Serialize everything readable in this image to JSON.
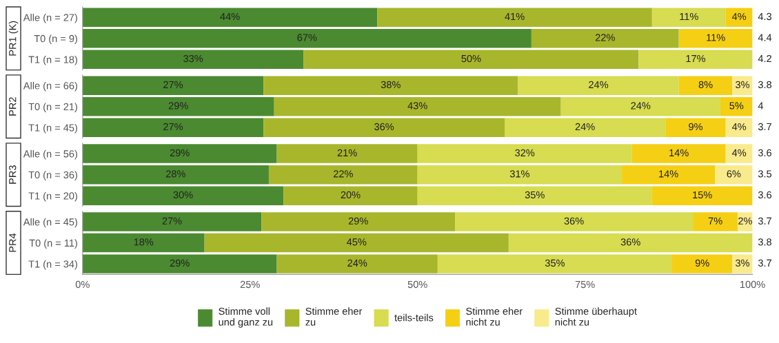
{
  "chart_data": [
    {
      "type": "bar",
      "title": "PR1 (K)",
      "orientation": "horizontal",
      "stacked": true,
      "categories": [
        "Alle (n = 27)",
        "T0 (n = 9)",
        "T1 (n = 18)"
      ],
      "series": [
        {
          "color": "#4b8a30",
          "values": [
            44,
            67,
            33
          ],
          "value_labels": [
            "44%",
            "67%",
            "33%"
          ]
        },
        {
          "color": "#a8b62c",
          "values": [
            41,
            22,
            50
          ],
          "value_labels": [
            "41%",
            "22%",
            "50%"
          ]
        },
        {
          "color": "#d7dc50",
          "values": [
            11,
            null,
            17
          ],
          "value_labels": [
            "11%",
            null,
            "17%"
          ]
        },
        {
          "color": "#f5cf14",
          "values": [
            4,
            11,
            null
          ],
          "value_labels": [
            "4%",
            "11%",
            null
          ]
        }
      ],
      "xlim": [
        0,
        100
      ],
      "tick_labels": "y",
      "annotations": [
        "4.3",
        "4.4",
        "4.2"
      ]
    },
    {
      "type": "bar",
      "title": "PR2",
      "orientation": "horizontal",
      "stacked": true,
      "categories": [
        "Alle (n = 66)",
        "T0 (n = 21)",
        "T1 (n = 45)"
      ],
      "series": [
        {
          "color": "#4b8a30",
          "values": [
            27,
            28.6,
            27
          ],
          "value_labels": [
            "27%",
            "29%",
            "27%"
          ]
        },
        {
          "color": "#a8b62c",
          "values": [
            38,
            42.8,
            36
          ],
          "value_labels": [
            "38%",
            "43%",
            "36%"
          ]
        },
        {
          "color": "#d7dc50",
          "values": [
            24,
            23.8,
            24
          ],
          "value_labels": [
            "24%",
            "24%",
            "24%"
          ]
        },
        {
          "color": "#f5cf14",
          "values": [
            8,
            4.8,
            9
          ],
          "value_labels": [
            "8%",
            "5%",
            "9%"
          ]
        },
        {
          "color": "#f9ea8c",
          "values": [
            3,
            null,
            4
          ],
          "value_labels": [
            "3%",
            null,
            "4%"
          ]
        }
      ],
      "xlim": [
        0,
        100
      ],
      "tick_labels": "y",
      "annotations": [
        "3.8",
        "4",
        "3.7"
      ]
    },
    {
      "type": "bar",
      "title": "PR3",
      "orientation": "horizontal",
      "stacked": true,
      "categories": [
        "Alle (n = 56)",
        "T0 (n = 36)",
        "T1 (n = 20)"
      ],
      "series": [
        {
          "color": "#4b8a30",
          "values": [
            29,
            27.8,
            30
          ],
          "value_labels": [
            "29%",
            "28%",
            "30%"
          ]
        },
        {
          "color": "#a8b62c",
          "values": [
            21,
            22.2,
            20
          ],
          "value_labels": [
            "21%",
            "22%",
            "20%"
          ]
        },
        {
          "color": "#d7dc50",
          "values": [
            32,
            30.5,
            35
          ],
          "value_labels": [
            "32%",
            "31%",
            "35%"
          ]
        },
        {
          "color": "#f5cf14",
          "values": [
            14,
            13.9,
            15
          ],
          "value_labels": [
            "14%",
            "14%",
            "15%"
          ]
        },
        {
          "color": "#f9ea8c",
          "values": [
            4,
            5.6,
            null
          ],
          "value_labels": [
            "4%",
            "6%",
            null
          ]
        }
      ],
      "xlim": [
        0,
        100
      ],
      "tick_labels": "y",
      "annotations": [
        "3.6",
        "3.5",
        "3.6"
      ]
    },
    {
      "type": "bar",
      "title": "PR4",
      "orientation": "horizontal",
      "stacked": true,
      "categories": [
        "Alle (n = 45)",
        "T0 (n = 11)",
        "T1 (n = 34)"
      ],
      "series": [
        {
          "name": "Stimme voll\nund ganz zu",
          "color": "#4b8a30",
          "values": [
            26.7,
            18.2,
            29
          ],
          "value_labels": [
            "27%",
            "18%",
            "29%"
          ]
        },
        {
          "name": "Stimme eher\nzu",
          "color": "#a8b62c",
          "values": [
            28.9,
            45.4,
            24
          ],
          "value_labels": [
            "29%",
            "45%",
            "24%"
          ]
        },
        {
          "name": "teils-teils",
          "color": "#d7dc50",
          "values": [
            35.5,
            36.4,
            35
          ],
          "value_labels": [
            "36%",
            "36%",
            "35%"
          ]
        },
        {
          "name": "Stimme eher\nnicht zu",
          "color": "#f5cf14",
          "values": [
            6.7,
            null,
            9
          ],
          "value_labels": [
            "7%",
            null,
            "9%"
          ]
        },
        {
          "name": "Stimme überhaupt\nnicht zu",
          "color": "#f9ea8c",
          "values": [
            2.2,
            null,
            3
          ],
          "value_labels": [
            "2%",
            null,
            "3%"
          ]
        }
      ],
      "xlim": [
        0,
        100
      ],
      "xticks": [
        {
          "value": 0,
          "label": "0%"
        },
        {
          "value": 25,
          "label": "25%"
        },
        {
          "value": 50,
          "label": "50%"
        },
        {
          "value": 75,
          "label": "75%"
        },
        {
          "value": 100,
          "label": "100%"
        }
      ],
      "legend": "bottom",
      "annotations": [
        "3.7",
        "3.8",
        "3.7"
      ]
    }
  ]
}
